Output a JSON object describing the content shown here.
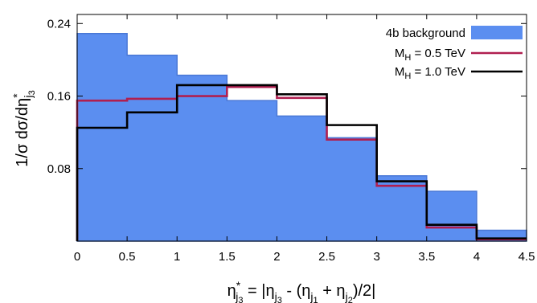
{
  "chart_data": {
    "type": "line",
    "x_edges": [
      0,
      0.5,
      1,
      1.5,
      2,
      2.5,
      3,
      3.5,
      4,
      4.5
    ],
    "xticks": [
      "0",
      "0.5",
      "1",
      "1.5",
      "2",
      "2.5",
      "3",
      "3.5",
      "4",
      "4.5"
    ],
    "yticks": [
      "0.08",
      "0.16",
      "0.24"
    ],
    "ytick_values": [
      0.08,
      0.16,
      0.24
    ],
    "xlim": [
      0,
      4.5
    ],
    "ylim": [
      0,
      0.25
    ],
    "grid": false,
    "legend_position": "top-right",
    "series": [
      {
        "name": "4b background",
        "style": "filled",
        "color": "#5b8ef0",
        "values": [
          0.229,
          0.205,
          0.183,
          0.155,
          0.138,
          0.114,
          0.072,
          0.055,
          0.012,
          0.002
        ]
      },
      {
        "name_main": "M",
        "name_sub": "H",
        "name_rest": " = 0.5 TeV",
        "style": "step",
        "color": "#b01f50",
        "values": [
          0.155,
          0.157,
          0.16,
          0.17,
          0.158,
          0.112,
          0.061,
          0.015,
          0.002
        ]
      },
      {
        "name_main": "M",
        "name_sub": "H",
        "name_rest": " = 1.0 TeV",
        "style": "step",
        "color": "#000000",
        "values": [
          0.125,
          0.142,
          0.172,
          0.172,
          0.162,
          0.128,
          0.066,
          0.018,
          0.003
        ]
      }
    ],
    "xlabel": {
      "eta": "η",
      "star": "*",
      "j3": "j",
      "j3n": "3",
      "eq": " = |η",
      "a": "j",
      "an": "3",
      "b": " - (η",
      "c": "j",
      "cn": "1",
      "d": " + η",
      "e": "j",
      "en": "2",
      "f": ")/2|"
    },
    "ylabel": {
      "main": "1/σ dσ/dη",
      "star": "*",
      "sub": "j",
      "subn": "3"
    }
  }
}
